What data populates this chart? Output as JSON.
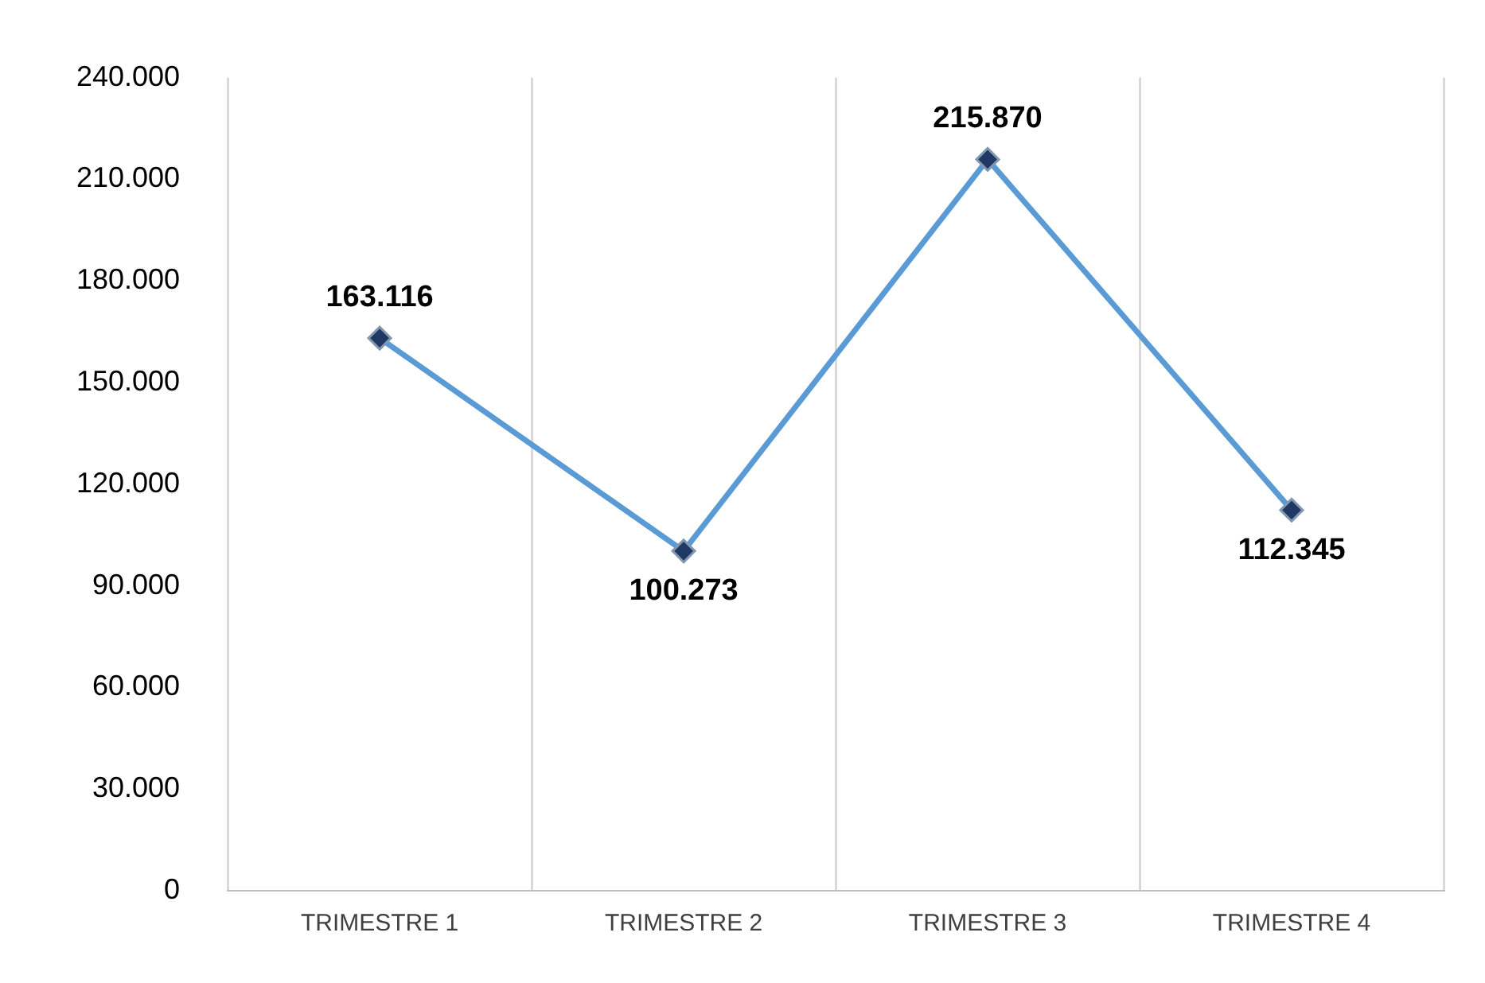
{
  "chart_data": {
    "type": "line",
    "categories": [
      "TRIMESTRE 1",
      "TRIMESTRE 2",
      "TRIMESTRE 3",
      "TRIMESTRE 4"
    ],
    "series": [
      {
        "color": "#5b9bd5",
        "values": [
          163116,
          100273,
          215870,
          112345
        ],
        "value_labels": [
          "163.116",
          "100.273",
          "215.870",
          "112.345"
        ]
      }
    ],
    "ylim": [
      0,
      240000
    ],
    "yticks": [
      {
        "value": 0,
        "label": "0"
      },
      {
        "value": 30000,
        "label": "30.000"
      },
      {
        "value": 60000,
        "label": "60.000"
      },
      {
        "value": 90000,
        "label": "90.000"
      },
      {
        "value": 120000,
        "label": "120.000"
      },
      {
        "value": 150000,
        "label": "150.000"
      },
      {
        "value": 180000,
        "label": "180.000"
      },
      {
        "value": 210000,
        "label": "210.000"
      },
      {
        "value": 240000,
        "label": "240.000"
      }
    ],
    "grid": "x",
    "marker": "diamond",
    "line_style": "solid",
    "legend": false
  }
}
